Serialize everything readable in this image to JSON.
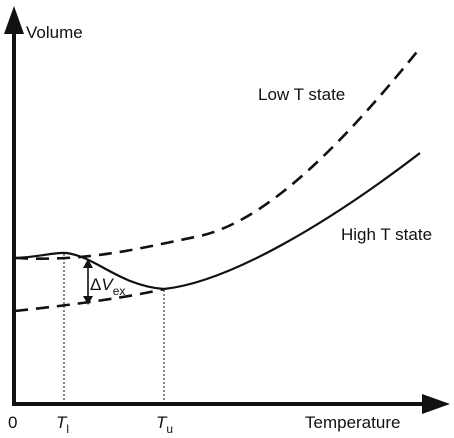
{
  "axes": {
    "y_label": "Volume",
    "x_label": "Temperature",
    "origin_label": "0"
  },
  "ticks": {
    "tl": {
      "main": "T",
      "sub": "l"
    },
    "tu": {
      "main": "T",
      "sub": "u"
    }
  },
  "curves": {
    "low_label": "Low T state",
    "high_label": "High T state"
  },
  "delta": {
    "symbol": "Δ",
    "main": "V",
    "sub": "ex"
  },
  "colors": {
    "ink": "#111111",
    "background": "#ffffff"
  }
}
